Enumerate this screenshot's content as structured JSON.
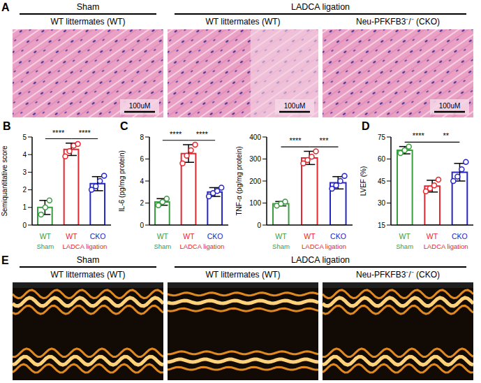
{
  "image_panels": [
    {
      "panel": "A",
      "columns": [
        {
          "group": "Sham",
          "label": "WT littermates (WT)"
        },
        {
          "group": "LADCA ligation",
          "label": "WT littermates (WT)"
        },
        {
          "group": "LADCA ligation",
          "label": "Neu-PFKFB3⁻/⁻ (CKO)"
        }
      ],
      "scale_bar": "100uM"
    },
    {
      "panel": "E",
      "columns": [
        {
          "group": "Sham",
          "label": "WT littermates (WT)"
        },
        {
          "group": "LADCA ligation",
          "label": "WT littermates (WT)"
        },
        {
          "group": "LADCA ligation",
          "label": "Neu-PFKFB3⁻/⁻ (CKO)"
        }
      ]
    }
  ],
  "chart_data": [
    {
      "type": "bar",
      "panel": "B",
      "y_label": "Semiquantitative score",
      "categories": [
        "WT",
        "WT",
        "CKO"
      ],
      "category_groups": [
        "Sham",
        "LADCA ligation",
        "LADCA ligation"
      ],
      "colors": [
        "#3a9d3f",
        "#e8262d",
        "#2626c4"
      ],
      "values": [
        1.0,
        4.3,
        2.35
      ],
      "error": [
        0.4,
        0.35,
        0.4
      ],
      "points": [
        [
          0.6,
          1.0,
          1.4
        ],
        [
          3.9,
          4.2,
          4.5,
          4.6
        ],
        [
          2.0,
          2.2,
          2.5,
          2.8
        ]
      ],
      "significance": [
        {
          "between": [
            0,
            1
          ],
          "label": "****"
        },
        {
          "between": [
            1,
            2
          ],
          "label": "****"
        }
      ],
      "ylim": [
        0,
        5
      ],
      "yticks": [
        0,
        1,
        2,
        3,
        4,
        5
      ]
    },
    {
      "type": "bar",
      "panel": "C",
      "y_label": "IL-6 (pg/mg protein)",
      "categories": [
        "WT",
        "WT",
        "CKO"
      ],
      "category_groups": [
        "Sham",
        "LADCA ligation",
        "LADCA ligation"
      ],
      "colors": [
        "#3a9d3f",
        "#e8262d",
        "#2626c4"
      ],
      "values": [
        2.1,
        6.5,
        3.0
      ],
      "error": [
        0.3,
        0.8,
        0.4
      ],
      "points": [
        [
          1.8,
          2.1,
          2.4
        ],
        [
          5.6,
          6.3,
          6.8,
          7.3
        ],
        [
          2.6,
          2.9,
          3.1,
          3.4
        ]
      ],
      "significance": [
        {
          "between": [
            0,
            1
          ],
          "label": "****"
        },
        {
          "between": [
            1,
            2
          ],
          "label": "****"
        }
      ],
      "ylim": [
        0,
        8
      ],
      "yticks": [
        0,
        2,
        4,
        6,
        8
      ]
    },
    {
      "type": "bar",
      "y_label": "TNF-α (pg/mg protein)",
      "categories": [
        "WT",
        "WT",
        "CKO"
      ],
      "category_groups": [
        "Sham",
        "LADCA ligation",
        "LADCA ligation"
      ],
      "colors": [
        "#3a9d3f",
        "#e8262d",
        "#2626c4"
      ],
      "values": [
        97,
        305,
        192
      ],
      "error": [
        10,
        30,
        28
      ],
      "points": [
        [
          88,
          97,
          106
        ],
        [
          280,
          295,
          310,
          335
        ],
        [
          165,
          180,
          200,
          223
        ]
      ],
      "significance": [
        {
          "between": [
            0,
            1
          ],
          "label": "****"
        },
        {
          "between": [
            1,
            2
          ],
          "label": "***"
        }
      ],
      "ylim": [
        0,
        400
      ],
      "yticks": [
        0,
        100,
        200,
        300,
        400
      ]
    },
    {
      "type": "bar",
      "panel": "D",
      "y_label": "LVEF (%)",
      "categories": [
        "WT",
        "WT",
        "CKO"
      ],
      "category_groups": [
        "Sham",
        "LADCA ligation",
        "LADCA ligation"
      ],
      "colors": [
        "#3a9d3f",
        "#e8262d",
        "#2626c4"
      ],
      "values": [
        66,
        41.5,
        51
      ],
      "error": [
        2.5,
        4,
        6
      ],
      "points": [
        [
          64,
          66,
          68.5
        ],
        [
          38,
          40,
          42,
          46
        ],
        [
          45,
          48,
          53,
          58
        ]
      ],
      "significance": [
        {
          "between": [
            0,
            1
          ],
          "label": "****"
        },
        {
          "between": [
            1,
            2
          ],
          "label": "**"
        }
      ],
      "ylim": [
        15,
        75
      ],
      "yticks": [
        15,
        30,
        45,
        60,
        75
      ]
    }
  ]
}
